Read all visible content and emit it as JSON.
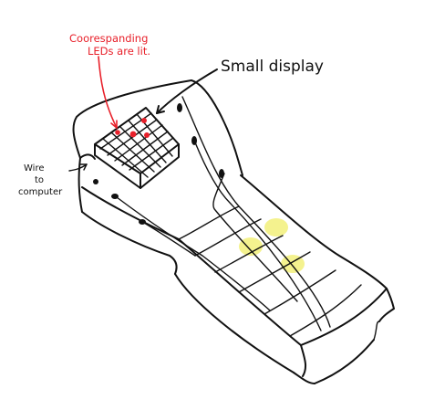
{
  "annotations": {
    "leds_note_line1": "Coorespanding",
    "leds_note_line2": "LEDs are lit.",
    "display_label": "Small display",
    "wire_line1": "Wire",
    "wire_line2": "to",
    "wire_line3": "computer"
  },
  "colors": {
    "ink": "#111111",
    "red_annotation": "#e8202a",
    "highlight": "#f2f07a",
    "background": "#ffffff"
  },
  "led_grid": {
    "rows": 6,
    "cols": 6,
    "lit_leds": 4
  },
  "fretboard": {
    "strings": 4,
    "frets": 6,
    "pressed_spots": 3
  }
}
